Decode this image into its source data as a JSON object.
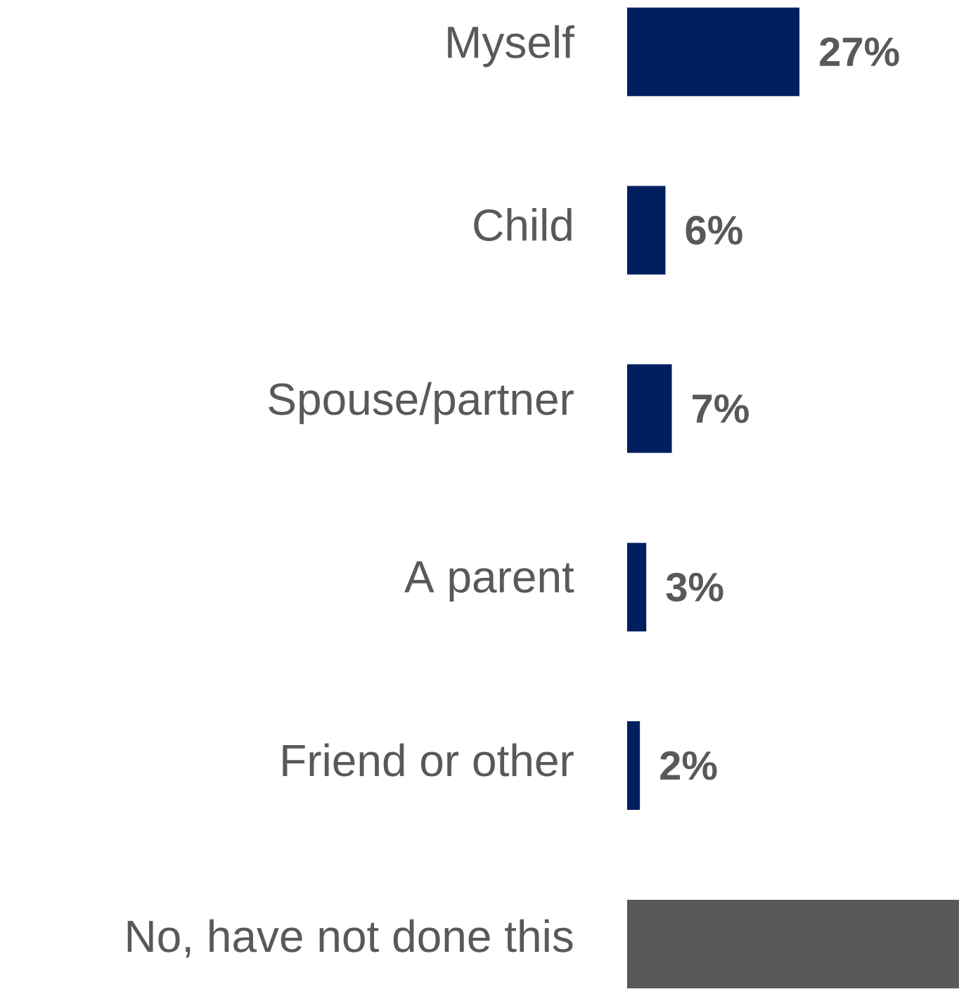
{
  "chart_data": {
    "type": "bar",
    "orientation": "horizontal",
    "categories": [
      "Myself",
      "Child",
      "Spouse/partner",
      "A parent",
      "Friend or other",
      "No, have not done this"
    ],
    "values": [
      27,
      6,
      7,
      3,
      2,
      52
    ],
    "colors": [
      "#001f5f",
      "#001f5f",
      "#001f5f",
      "#001f5f",
      "#001f5f",
      "#595959"
    ],
    "value_labels": [
      "27%",
      "6%",
      "7%",
      "3%",
      "2%",
      null
    ]
  }
}
